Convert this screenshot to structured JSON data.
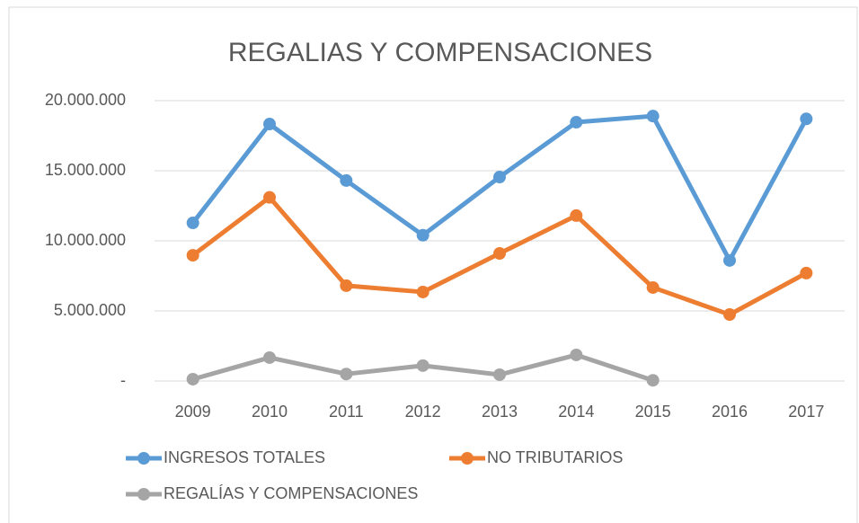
{
  "chart_data": {
    "type": "line",
    "title": "REGALIAS Y COMPENSACIONES",
    "categories": [
      "2009",
      "2010",
      "2011",
      "2012",
      "2013",
      "2014",
      "2015",
      "2016",
      "2017"
    ],
    "series": [
      {
        "name": "INGRESOS TOTALES",
        "color": "#5b9bd5",
        "values": [
          11280000,
          18330000,
          14300000,
          10400000,
          14550000,
          18460000,
          18900000,
          8600000,
          18700000
        ]
      },
      {
        "name": "NO TRIBUTARIOS",
        "color": "#ed7d31",
        "values": [
          8970000,
          13100000,
          6800000,
          6350000,
          9100000,
          11800000,
          6670000,
          4740000,
          7700000
        ]
      },
      {
        "name": "REGALÍAS Y COMPENSACIONES",
        "color": "#a5a5a5",
        "values": [
          130000,
          1670000,
          500000,
          1100000,
          450000,
          1860000,
          50000,
          null,
          null
        ]
      }
    ],
    "ylim": [
      0,
      20000000
    ],
    "yticks": [
      {
        "value": 0,
        "label": "-"
      },
      {
        "value": 5000000,
        "label": "5.000.000"
      },
      {
        "value": 10000000,
        "label": "10.000.000"
      },
      {
        "value": 15000000,
        "label": "15.000.000"
      },
      {
        "value": 20000000,
        "label": "20.000.000"
      }
    ],
    "grid": true,
    "legend": "bottom"
  }
}
